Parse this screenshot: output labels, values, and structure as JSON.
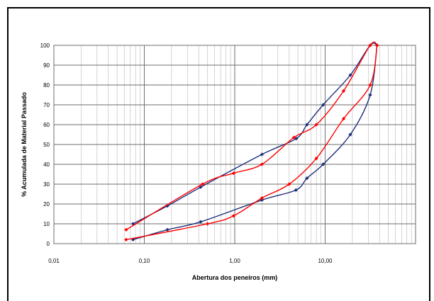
{
  "chart_data": {
    "type": "line",
    "xscale": "log",
    "xlim": [
      0.01,
      100
    ],
    "ylim": [
      0,
      100
    ],
    "grid": true,
    "legend": "none",
    "xlabel": "Abertura dos peneiros (mm)",
    "ylabel": "% Acumulada de Material Passado",
    "x_tick_labels": [
      "0,01",
      "0,10",
      "1,00",
      "10,00"
    ],
    "x_ticks": [
      0.01,
      0.1,
      1,
      10
    ],
    "y_ticks": [
      0,
      10,
      20,
      30,
      40,
      50,
      60,
      70,
      80,
      90,
      100
    ],
    "series": [
      {
        "color": "#1f2f7a",
        "marker": "diamond",
        "points": [
          [
            0.075,
            10
          ],
          [
            0.18,
            19
          ],
          [
            0.42,
            28.5
          ],
          [
            2.0,
            45
          ],
          [
            4.8,
            53
          ],
          [
            6.3,
            60
          ],
          [
            9.5,
            70
          ],
          [
            19,
            85
          ],
          [
            31.5,
            100
          ],
          [
            37.5,
            100
          ]
        ]
      },
      {
        "color": "#ff0000",
        "marker": "diamond",
        "points": [
          [
            0.063,
            7
          ],
          [
            0.44,
            30
          ],
          [
            0.97,
            35.5
          ],
          [
            2.0,
            40
          ],
          [
            4.5,
            53.5
          ],
          [
            8.0,
            60
          ],
          [
            16,
            77
          ],
          [
            31.5,
            100
          ],
          [
            37.5,
            100
          ]
        ]
      },
      {
        "color": "#1f2f7a",
        "marker": "diamond",
        "points": [
          [
            0.075,
            2
          ],
          [
            0.18,
            7
          ],
          [
            0.42,
            11
          ],
          [
            2.0,
            22
          ],
          [
            4.75,
            27
          ],
          [
            6.3,
            33
          ],
          [
            9.5,
            40
          ],
          [
            19,
            55
          ],
          [
            31.5,
            75
          ],
          [
            37.5,
            100
          ]
        ]
      },
      {
        "color": "#ff0000",
        "marker": "diamond",
        "points": [
          [
            0.063,
            2
          ],
          [
            0.5,
            10
          ],
          [
            0.97,
            14
          ],
          [
            2.0,
            23
          ],
          [
            4.0,
            30
          ],
          [
            8.0,
            43
          ],
          [
            16,
            63
          ],
          [
            31.5,
            80
          ],
          [
            37.5,
            100
          ]
        ]
      }
    ]
  }
}
